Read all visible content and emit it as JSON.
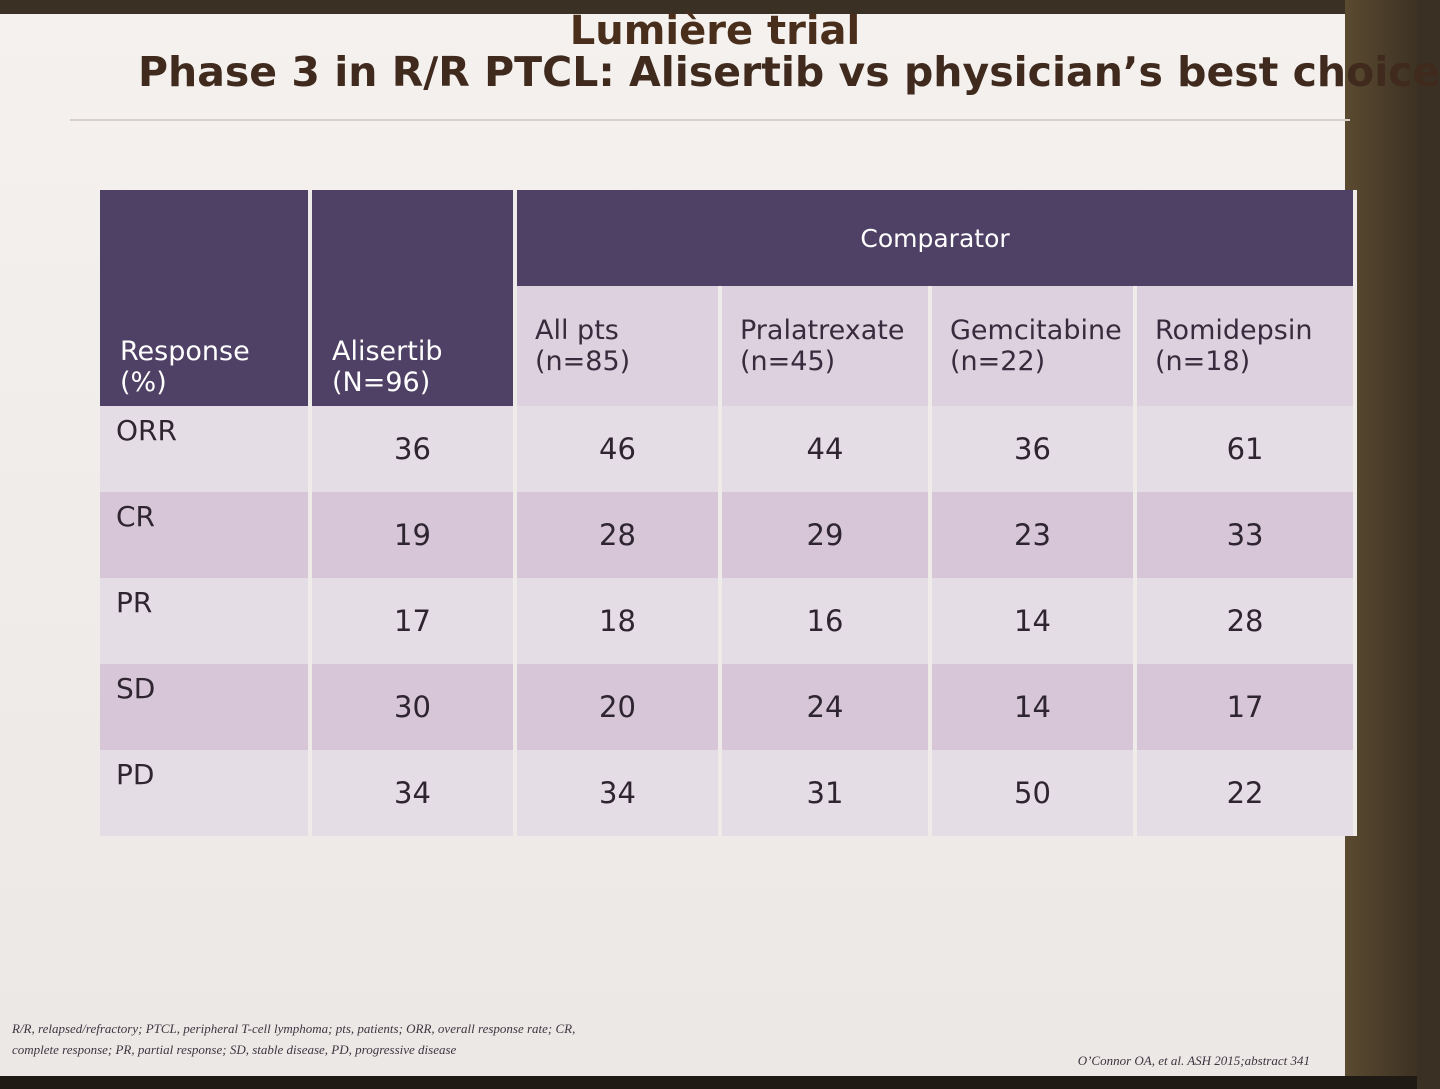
{
  "slide": {
    "title": "Lumière trial",
    "subtitle": "Phase 3 in R/R PTCL: Alisertib vs physician’s best choice"
  },
  "table": {
    "response_header": [
      "Response",
      "(%)"
    ],
    "alisertib_header": [
      "Alisertib",
      "(N=96)"
    ],
    "comparator_header": "Comparator",
    "comparator_columns": [
      [
        "All pts",
        "(n=85)"
      ],
      [
        "Pralatrexate",
        "(n=45)"
      ],
      [
        "Gemcitabine",
        "(n=22)"
      ],
      [
        "Romidepsin",
        "(n=18)"
      ]
    ],
    "rows": [
      {
        "label": "ORR",
        "values": [
          "36",
          "46",
          "44",
          "36",
          "61"
        ]
      },
      {
        "label": "CR",
        "values": [
          "19",
          "28",
          "29",
          "23",
          "33"
        ]
      },
      {
        "label": "PR",
        "values": [
          "17",
          "18",
          "16",
          "14",
          "28"
        ]
      },
      {
        "label": "SD",
        "values": [
          "30",
          "20",
          "24",
          "14",
          "17"
        ]
      },
      {
        "label": "PD",
        "values": [
          "34",
          "34",
          "31",
          "50",
          "22"
        ]
      }
    ]
  },
  "footnote": [
    "R/R, relapsed/refractory; PTCL, peripheral T-cell lymphoma; pts, patients; ORR, overall response rate; CR,",
    "complete response; PR, partial response; SD, stable disease, PD, progressive disease"
  ],
  "citation": "O’Connor OA, et al. ASH 2015;abstract 341",
  "colors": {
    "header_dark": "#4f4166",
    "header_light": "#ddd1df",
    "row_light": "#e5dde5",
    "row_dark": "#d6c6d8",
    "title": "#4a2e1c"
  }
}
